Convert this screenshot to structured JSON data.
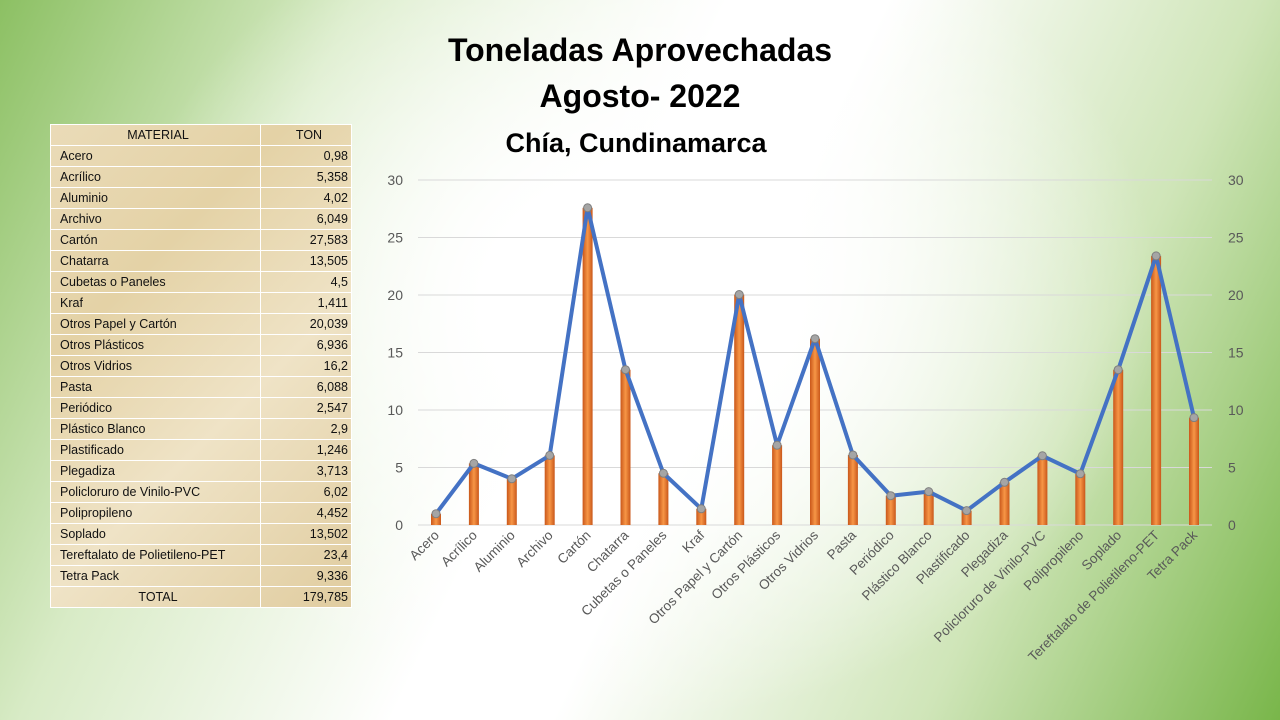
{
  "title_line1": "Toneladas Aprovechadas",
  "title_line2": "Agosto- 2022",
  "subtitle": "Chía, Cundinamarca",
  "table": {
    "headers": [
      "MATERIAL",
      "TON"
    ],
    "rows": [
      [
        "Acero",
        "0,98"
      ],
      [
        "Acrílico",
        "5,358"
      ],
      [
        "Aluminio",
        "4,02"
      ],
      [
        "Archivo",
        "6,049"
      ],
      [
        "Cartón",
        "27,583"
      ],
      [
        "Chatarra",
        "13,505"
      ],
      [
        "Cubetas o Paneles",
        "4,5"
      ],
      [
        "Kraf",
        "1,411"
      ],
      [
        "Otros Papel y Cartón",
        "20,039"
      ],
      [
        "Otros Plásticos",
        "6,936"
      ],
      [
        "Otros Vidrios",
        "16,2"
      ],
      [
        "Pasta",
        "6,088"
      ],
      [
        "Periódico",
        "2,547"
      ],
      [
        "Plástico Blanco",
        "2,9"
      ],
      [
        "Plastificado",
        "1,246"
      ],
      [
        "Plegadiza",
        "3,713"
      ],
      [
        "Policloruro de Vinilo-PVC",
        "6,02"
      ],
      [
        "Polipropileno",
        "4,452"
      ],
      [
        "Soplado",
        "13,502"
      ],
      [
        "Tereftalato de Polietileno-PET",
        "23,4"
      ],
      [
        "Tetra Pack",
        "9,336"
      ]
    ],
    "total": [
      "TOTAL",
      "179,785"
    ]
  },
  "chart_data": {
    "type": "bar+line",
    "categories": [
      "Acero",
      "Acrílico",
      "Aluminio",
      "Archivo",
      "Cartón",
      "Chatarra",
      "Cubetas o Paneles",
      "Kraf",
      "Otros Papel y Cartón",
      "Otros Plásticos",
      "Otros Vidrios",
      "Pasta",
      "Periódico",
      "Plástico Blanco",
      "Plastificado",
      "Plegadiza",
      "Policloruro de Vinilo-PVC",
      "Polipropileno",
      "Soplado",
      "Tereftalato de Polietileno-PET",
      "Tetra Pack"
    ],
    "values": [
      0.98,
      5.358,
      4.02,
      6.049,
      27.583,
      13.505,
      4.5,
      1.411,
      20.039,
      6.936,
      16.2,
      6.088,
      2.547,
      2.9,
      1.246,
      3.713,
      6.02,
      4.452,
      13.502,
      23.4,
      9.336
    ],
    "ylim": [
      0,
      30
    ],
    "yticks": [
      0,
      5,
      10,
      15,
      20,
      25,
      30
    ],
    "grid": true,
    "colors": {
      "bar": "#ed7d31",
      "line": "#4472c4",
      "marker": "#a5a5a5"
    }
  }
}
